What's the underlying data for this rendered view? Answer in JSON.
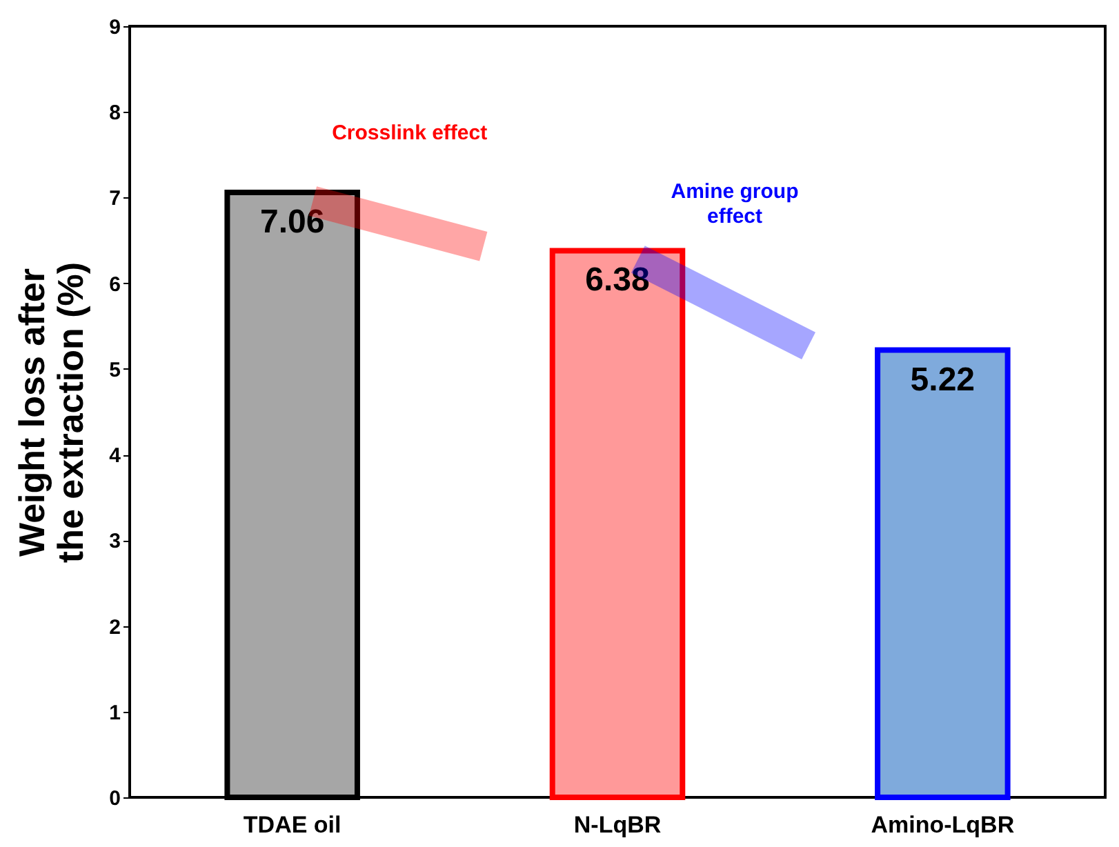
{
  "chart_data": {
    "type": "bar",
    "ylabel": "Weight loss after the extraction (%)",
    "categories": [
      "TDAE oil",
      "N-LqBR",
      "Amino-LqBR"
    ],
    "values": [
      7.06,
      6.38,
      5.22
    ],
    "colors": [
      "#a6a6a6",
      "#ff9999",
      "#7faadc"
    ],
    "ylim": [
      0,
      9
    ],
    "yticks": [
      0,
      1,
      2,
      3,
      4,
      5,
      6,
      7,
      8,
      9
    ],
    "grid": false,
    "data_labels": true,
    "annotations": [
      "Crosslink effect",
      "Amine group effect"
    ]
  }
}
